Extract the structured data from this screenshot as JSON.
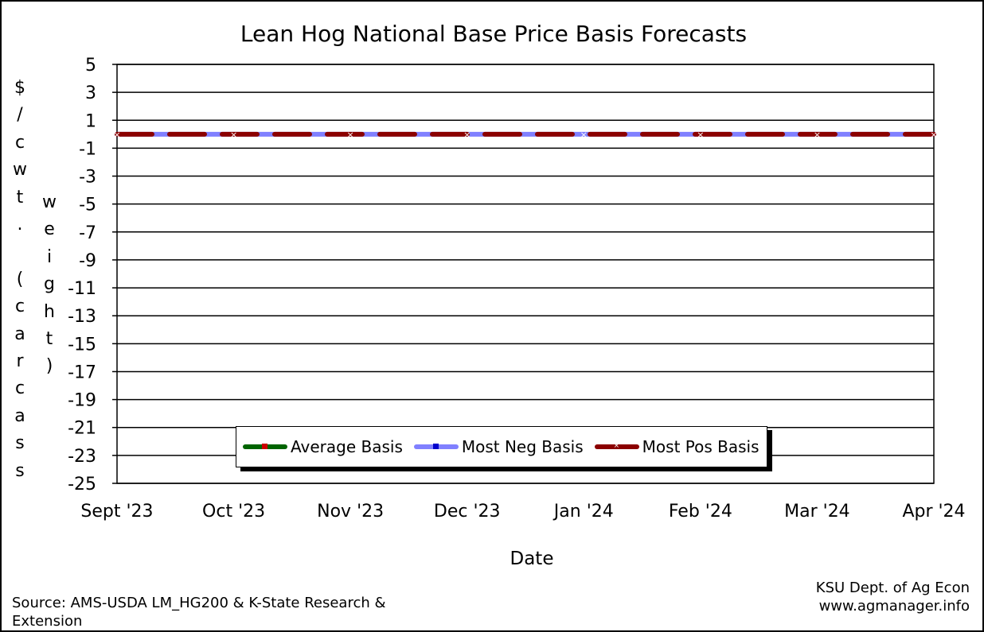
{
  "chart_data": {
    "type": "line",
    "title": "Lean Hog National Base Price Basis Forecasts",
    "ylabel_primary": "$/cwt. (carcass",
    "ylabel_secondary": "weight)",
    "xlabel": "Date",
    "categories": [
      "Sept '23",
      "Oct '23",
      "Nov '23",
      "Dec '23",
      "Jan '24",
      "Feb '24",
      "Mar '24",
      "Apr '24"
    ],
    "yticks": [
      "5",
      "3",
      "1",
      "-1",
      "-3",
      "-5",
      "-7",
      "-9",
      "-11",
      "-13",
      "-15",
      "-17",
      "-19",
      "-21",
      "-23",
      "-25"
    ],
    "ylim": [
      -25,
      5
    ],
    "grid": true,
    "legend_position": "bottom-center",
    "series": [
      {
        "name": "Average Basis",
        "color": "#006400",
        "marker_color": "#cc0000",
        "values": [
          0,
          0,
          0,
          0,
          0,
          0,
          0,
          0
        ]
      },
      {
        "name": "Most Neg Basis",
        "color": "#8080ff",
        "marker_color": "#0000cc",
        "values": [
          0,
          0,
          0,
          0,
          0,
          0,
          0,
          0
        ]
      },
      {
        "name": "Most Pos Basis",
        "color": "#8b0000",
        "marker_color": "#ffffff",
        "values": [
          0,
          0,
          0,
          0,
          0,
          0,
          0,
          0
        ]
      }
    ]
  },
  "footer": {
    "source": "Source:  AMS-USDA LM_HG200 & K-State Research & Extension",
    "credit_line1": "KSU Dept. of Ag Econ",
    "credit_line2": "www.agmanager.info"
  }
}
